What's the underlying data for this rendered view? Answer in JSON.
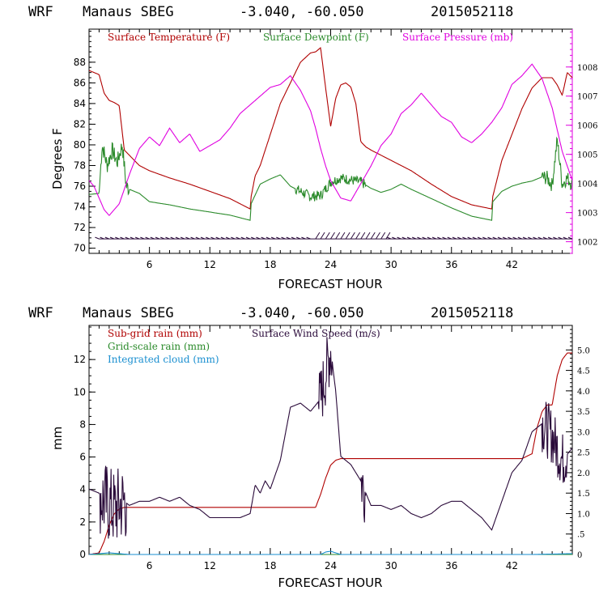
{
  "charts": [
    {
      "title": {
        "model": "WRF",
        "station": "Manaus SBEG",
        "coords": "-3.040, -60.050",
        "run": "2015052118"
      },
      "xlabel": "FORECAST HOUR",
      "ylabel_left": "Degrees F",
      "legend": [
        {
          "label": "Surface Temperature (F)",
          "color": "#b00000"
        },
        {
          "label": "Surface Dewpoint (F)",
          "color": "#2a8a2a"
        },
        {
          "label": "Surface Pressure (mb)",
          "color": "#e000e0"
        }
      ],
      "x_ticks": [
        "6",
        "12",
        "18",
        "24",
        "30",
        "36",
        "42"
      ],
      "y_left_ticks": [
        "70",
        "72",
        "74",
        "76",
        "78",
        "80",
        "82",
        "84",
        "86",
        "88"
      ],
      "y_right_ticks": [
        "1002",
        "1003",
        "1004",
        "1005",
        "1006",
        "1007",
        "1008"
      ]
    },
    {
      "title": {
        "model": "WRF",
        "station": "Manaus SBEG",
        "coords": "-3.040, -60.050",
        "run": "2015052118"
      },
      "xlabel": "FORECAST HOUR",
      "ylabel_left": "mm",
      "legend": [
        {
          "label": "Sub-grid rain (mm)",
          "color": "#b00000"
        },
        {
          "label": "Surface Wind Speed (m/s)",
          "color": "#2a0a3a"
        },
        {
          "label": "Grid-scale rain (mm)",
          "color": "#2a8a2a"
        },
        {
          "label": "Integrated cloud (mm)",
          "color": "#1a8fd0"
        }
      ],
      "x_ticks": [
        "6",
        "12",
        "18",
        "24",
        "30",
        "36",
        "42"
      ],
      "y_left_ticks": [
        "0",
        "2",
        "4",
        "6",
        "8",
        "10",
        "12"
      ],
      "y_right_ticks": [
        "0",
        ".5",
        "1.0",
        "1.5",
        "2.0",
        "2.5",
        "3.0",
        "3.5",
        "4.0",
        "4.5",
        "5.0"
      ]
    }
  ],
  "chart_data": [
    {
      "type": "line",
      "xlim": [
        0,
        48
      ],
      "ylim_left": [
        69.5,
        91.2
      ],
      "ylim_right": [
        1001.6,
        1009.3
      ],
      "x_ticks": [
        6,
        12,
        18,
        24,
        30,
        36,
        42
      ],
      "y_left_ticks": [
        70,
        72,
        74,
        76,
        78,
        80,
        82,
        84,
        86,
        88
      ],
      "y_right_ticks": [
        1002,
        1003,
        1004,
        1005,
        1006,
        1007,
        1008
      ],
      "series": [
        {
          "name": "Surface Temperature (F)",
          "axis": "left",
          "color": "#b00000",
          "x": [
            0,
            1,
            1.5,
            2,
            2.5,
            3,
            3.5,
            4,
            5,
            6,
            8,
            10,
            12,
            14,
            16,
            16.1,
            16.5,
            17,
            18,
            19,
            20,
            21,
            22,
            22.5,
            23,
            23.5,
            24,
            24.5,
            25,
            25.5,
            26,
            26.5,
            27,
            27.5,
            28,
            30,
            32,
            34,
            36,
            38,
            40,
            40.1,
            41,
            42,
            43,
            44,
            45,
            46,
            46.5,
            47,
            47.5,
            48
          ],
          "y": [
            87.2,
            86.8,
            85,
            84.3,
            84.1,
            83.8,
            79.5,
            79,
            78,
            77.5,
            76.8,
            76.2,
            75.5,
            74.8,
            73.8,
            75,
            77,
            78,
            81,
            84,
            86,
            88,
            88.9,
            89,
            89.4,
            85.5,
            81.8,
            84.5,
            85.8,
            86,
            85.6,
            84,
            80.3,
            79.8,
            79.5,
            78.5,
            77.5,
            76.2,
            75,
            74.2,
            73.8,
            75,
            78.5,
            81,
            83.5,
            85.5,
            86.5,
            86.5,
            85.8,
            84.8,
            87,
            86.5
          ]
        },
        {
          "name": "Surface Dewpoint (F)",
          "axis": "left",
          "color": "#2a8a2a",
          "x": [
            0,
            1,
            1.3,
            1.8,
            2.3,
            2.8,
            3.3,
            3.7,
            4,
            5,
            6,
            8,
            10,
            12,
            14,
            16,
            16.1,
            17,
            18,
            19,
            20,
            21,
            22,
            23,
            24,
            25,
            26,
            27,
            27.5,
            28,
            29,
            30,
            31,
            32,
            34,
            36,
            38,
            40,
            40.1,
            41,
            42,
            43,
            44,
            45,
            45.5,
            46,
            46.5,
            47,
            47.5,
            48
          ],
          "y": [
            75.2,
            75.3,
            80,
            78,
            79.5,
            78.3,
            80,
            76,
            75.7,
            75.3,
            74.5,
            74.2,
            73.8,
            73.5,
            73.2,
            72.7,
            74.3,
            76.2,
            76.7,
            77.1,
            76,
            75.5,
            75,
            75.1,
            76.4,
            76.8,
            76.6,
            76.4,
            76.1,
            75.8,
            75.4,
            75.7,
            76.2,
            75.7,
            74.8,
            73.9,
            73.1,
            72.7,
            74.5,
            75.5,
            76,
            76.3,
            76.5,
            76.9,
            76.8,
            76.1,
            80.5,
            76.2,
            76.8,
            76.2
          ],
          "noise": [
            [
              1.1,
              4,
              0.8
            ],
            [
              20.5,
              27.5,
              0.5
            ],
            [
              45,
              48,
              0.7
            ]
          ]
        },
        {
          "name": "Surface Pressure (mb)",
          "axis": "right",
          "color": "#e000e0",
          "x": [
            0,
            0.5,
            1,
            1.5,
            2,
            3,
            4,
            5,
            6,
            7,
            8,
            9,
            10,
            11,
            12,
            13,
            14,
            15,
            16,
            17,
            18,
            19,
            20,
            21,
            22,
            22.5,
            23,
            23.5,
            24,
            25,
            26,
            27,
            28,
            29,
            30,
            31,
            32,
            33,
            34,
            35,
            36,
            37,
            38,
            39,
            40,
            41,
            42,
            43,
            44,
            45,
            46,
            47,
            48
          ],
          "y": [
            1004.1,
            1003.9,
            1003.5,
            1003.1,
            1002.9,
            1003.3,
            1004.3,
            1005.2,
            1005.6,
            1005.3,
            1005.9,
            1005.4,
            1005.7,
            1005.1,
            1005.3,
            1005.5,
            1005.9,
            1006.4,
            1006.7,
            1007,
            1007.3,
            1007.4,
            1007.7,
            1007.2,
            1006.5,
            1005.9,
            1005.2,
            1004.6,
            1004.1,
            1003.5,
            1003.4,
            1004,
            1004.6,
            1005.3,
            1005.7,
            1006.4,
            1006.7,
            1007.1,
            1006.7,
            1006.3,
            1006.1,
            1005.6,
            1005.4,
            1005.7,
            1006.1,
            1006.6,
            1007.4,
            1007.7,
            1008.1,
            1007.6,
            1006.6,
            1005.1,
            1004.1
          ]
        },
        {
          "name": "Surface wind barbs",
          "axis": "left",
          "color": "#2a0a3a",
          "x": [
            1,
            48
          ],
          "y": [
            70.9,
            70.9
          ],
          "type": "barbs"
        }
      ]
    },
    {
      "type": "line",
      "xlim": [
        0,
        48
      ],
      "ylim_left": [
        0,
        14.1
      ],
      "ylim_right": [
        0,
        5.6
      ],
      "x_ticks": [
        6,
        12,
        18,
        24,
        30,
        36,
        42
      ],
      "y_left_ticks": [
        0,
        2,
        4,
        6,
        8,
        10,
        12
      ],
      "y_right_ticks": [
        0,
        0.5,
        1,
        1.5,
        2,
        2.5,
        3,
        3.5,
        4,
        4.5,
        5
      ],
      "series": [
        {
          "name": "Sub-grid rain (mm)",
          "axis": "left",
          "color": "#b00000",
          "x": [
            0,
            1,
            1.5,
            2,
            2.5,
            3,
            3.5,
            4,
            22.5,
            23,
            23.5,
            24,
            24.5,
            25,
            43,
            44,
            44.5,
            45,
            45.5,
            46,
            46.5,
            47,
            47.5,
            48
          ],
          "y": [
            0,
            0.1,
            0.8,
            1.8,
            2.5,
            2.8,
            2.9,
            2.9,
            2.9,
            3.7,
            4.7,
            5.5,
            5.8,
            5.9,
            5.9,
            6.2,
            7.8,
            8.8,
            9.2,
            9.2,
            11,
            12,
            12.4,
            12.4
          ]
        },
        {
          "name": "Surface Wind Speed (m/s)",
          "axis": "right",
          "color": "#2a0a3a",
          "x": [
            0,
            1,
            1.5,
            2,
            2.5,
            3,
            3.5,
            4,
            5,
            6,
            7,
            8,
            9,
            10,
            11,
            12,
            13,
            14,
            15,
            16,
            16.5,
            17,
            17.5,
            18,
            19,
            20,
            21,
            22,
            23,
            24,
            24.5,
            25,
            26,
            27,
            28,
            29,
            30,
            31,
            32,
            33,
            34,
            35,
            36,
            37,
            38,
            39,
            40,
            41,
            42,
            43,
            44,
            45,
            46,
            47,
            48
          ],
          "y": [
            1.6,
            1.5,
            1.3,
            1.2,
            1.1,
            1.2,
            1.3,
            1.2,
            1.3,
            1.3,
            1.4,
            1.3,
            1.4,
            1.2,
            1.1,
            0.9,
            0.9,
            0.9,
            0.9,
            1.0,
            1.7,
            1.5,
            1.8,
            1.6,
            2.3,
            3.6,
            3.7,
            3.5,
            3.8,
            5.0,
            4.0,
            2.4,
            2.2,
            1.8,
            1.2,
            1.2,
            1.1,
            1.2,
            1.0,
            0.9,
            1.0,
            1.2,
            1.3,
            1.3,
            1.1,
            0.9,
            0.6,
            1.3,
            2.0,
            2.3,
            3.0,
            3.2,
            2.9,
            2.3,
            2.6
          ],
          "noise": [
            [
              1.1,
              3.7,
              1.0
            ],
            [
              22.8,
              24.2,
              0.8
            ],
            [
              27,
              27.5,
              0.8
            ],
            [
              45,
              47.5,
              0.7
            ]
          ]
        },
        {
          "name": "Grid-scale rain (mm)",
          "axis": "left",
          "color": "#2a8a2a",
          "x": [
            0,
            48
          ],
          "y": [
            0,
            0
          ]
        },
        {
          "name": "Integrated cloud (mm)",
          "axis": "left",
          "color": "#1a8fd0",
          "x": [
            0,
            1,
            2,
            3,
            4,
            23,
            23.5,
            24,
            24.5,
            25,
            44,
            48
          ],
          "y": [
            0,
            0.05,
            0.1,
            0.05,
            0,
            0,
            0.15,
            0.2,
            0.1,
            0,
            0,
            0.05
          ]
        }
      ]
    }
  ]
}
